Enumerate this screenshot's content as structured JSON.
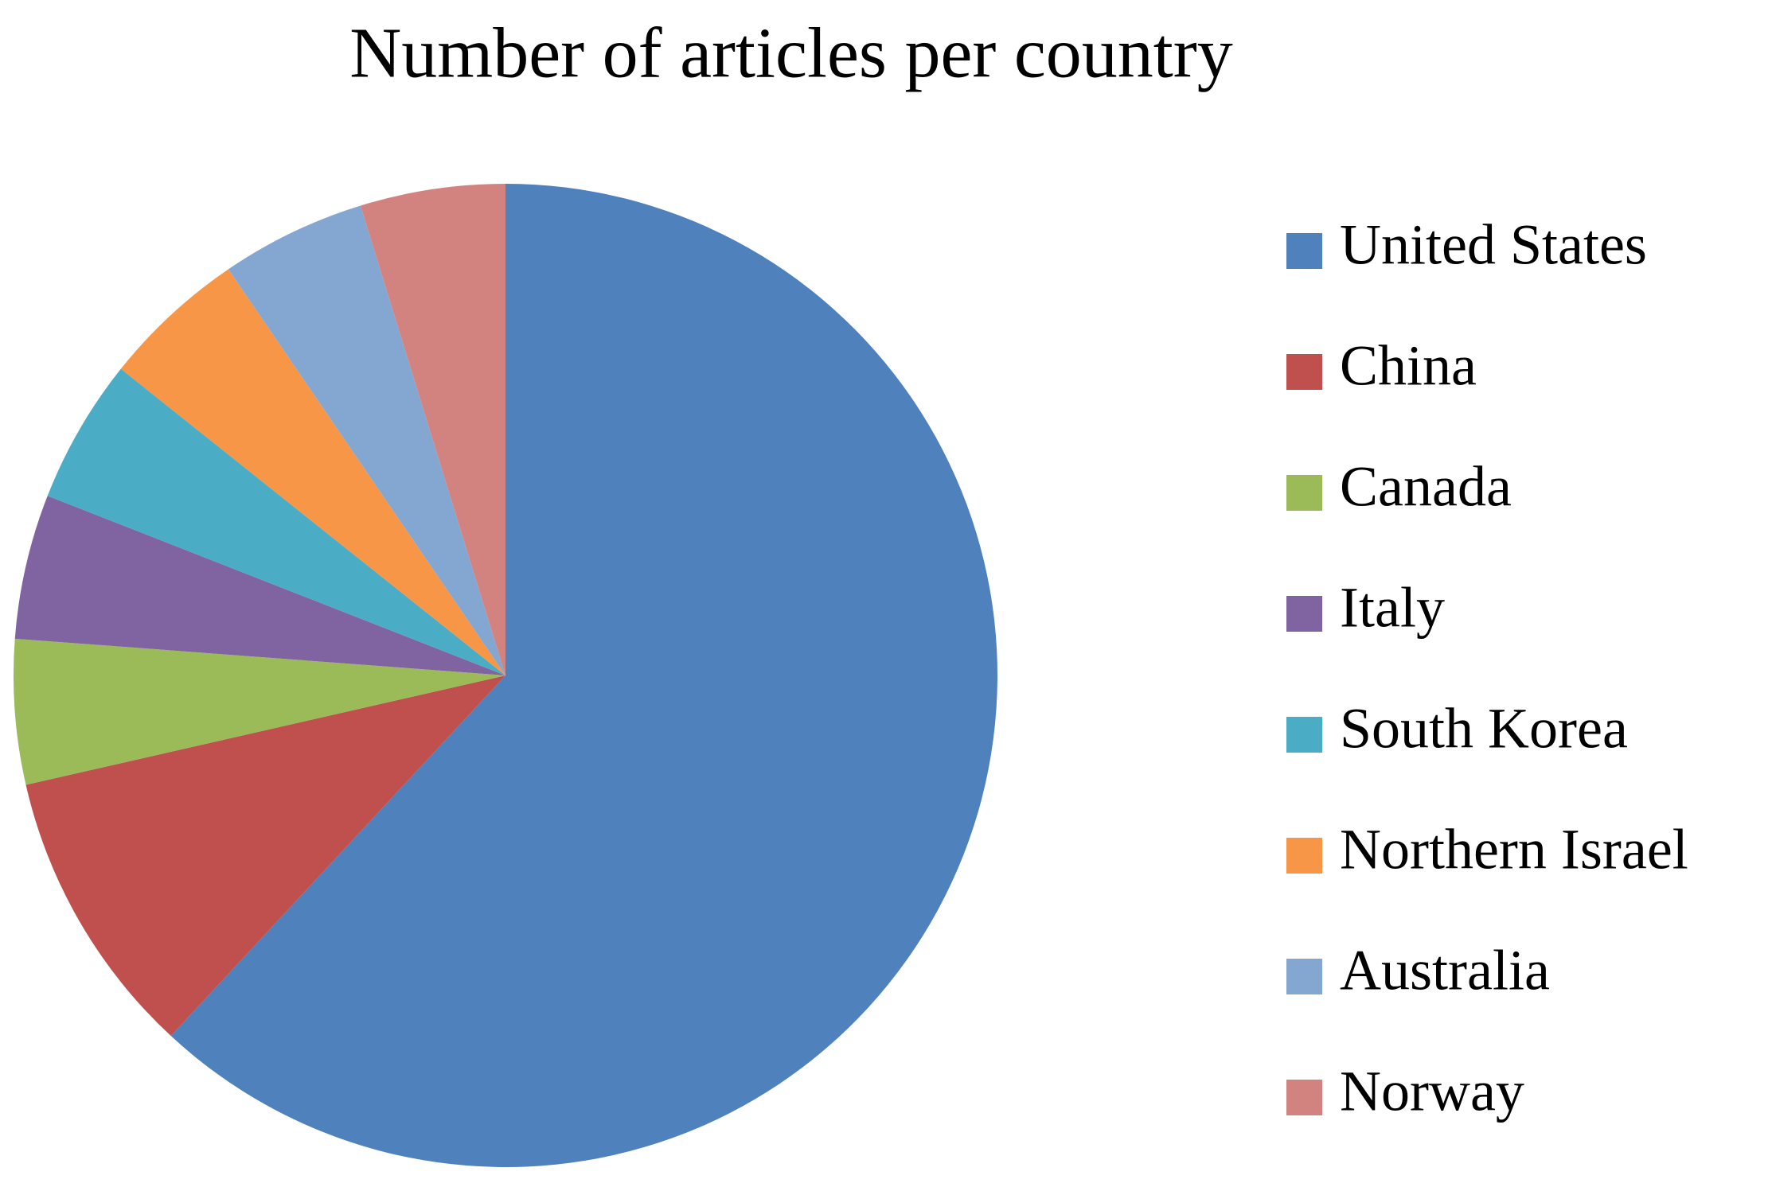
{
  "chart_data": {
    "type": "pie",
    "title": "Number of articles per country",
    "categories": [
      "United States",
      "China",
      "Canada",
      "Italy",
      "South Korea",
      "Northern Israel",
      "Australia",
      "Norway"
    ],
    "values": [
      13,
      2,
      1,
      1,
      1,
      1,
      1,
      1
    ],
    "colors": [
      "#4f81bd",
      "#c0504d",
      "#9bbb59",
      "#8064a2",
      "#4bacc6",
      "#f79646",
      "#84a7d1",
      "#d3837f"
    ],
    "legend": "right"
  }
}
